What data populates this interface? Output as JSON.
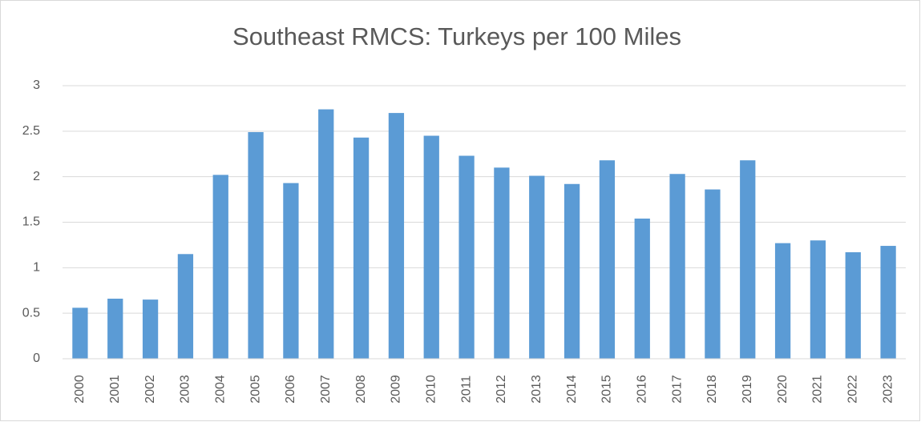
{
  "chart_data": {
    "type": "bar",
    "title": "Southeast RMCS: Turkeys per 100 Miles",
    "categories": [
      "2000",
      "2001",
      "2002",
      "2003",
      "2004",
      "2005",
      "2006",
      "2007",
      "2008",
      "2009",
      "2010",
      "2011",
      "2012",
      "2013",
      "2014",
      "2015",
      "2016",
      "2017",
      "2018",
      "2019",
      "2020",
      "2021",
      "2022",
      "2023"
    ],
    "values": [
      0.56,
      0.66,
      0.65,
      1.15,
      2.02,
      2.49,
      1.93,
      2.74,
      2.43,
      2.7,
      2.45,
      2.23,
      2.1,
      2.01,
      1.92,
      2.18,
      1.54,
      2.03,
      1.86,
      2.18,
      1.27,
      1.3,
      1.17,
      1.24
    ],
    "color": "#5b9bd5",
    "ylim": [
      0,
      3
    ],
    "yticks": [
      0,
      0.5,
      1,
      1.5,
      2,
      2.5,
      3
    ],
    "grid": true
  }
}
